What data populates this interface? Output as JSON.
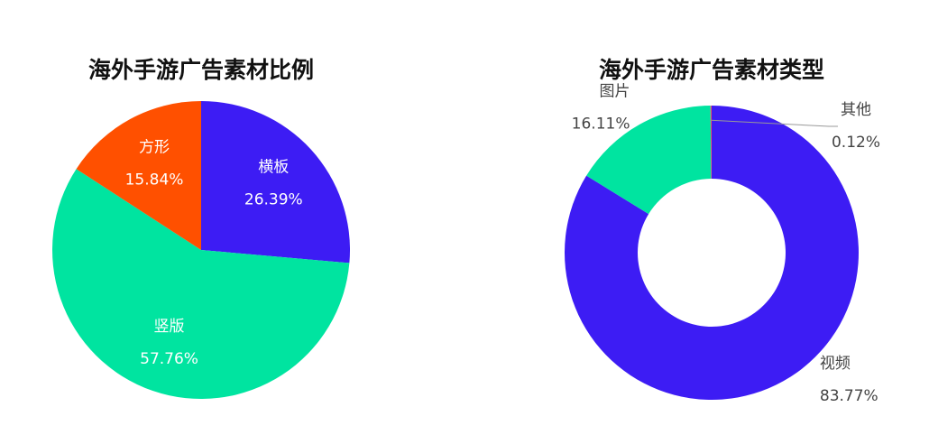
{
  "chart_data": [
    {
      "type": "pie",
      "title": "海外手游广告素材比例",
      "categories": [
        "横板",
        "竖版",
        "方形"
      ],
      "values": [
        26.39,
        57.76,
        15.84
      ],
      "value_labels": [
        "26.39%",
        "57.76%",
        "15.84%"
      ],
      "colors": [
        "#3d1cf4",
        "#00e4a0",
        "#ff5000"
      ]
    },
    {
      "type": "donut",
      "title": "海外手游广告素材类型",
      "categories": [
        "视频",
        "图片",
        "其他"
      ],
      "values": [
        83.77,
        16.11,
        0.12
      ],
      "value_labels": [
        "83.77%",
        "16.11%",
        "0.12%"
      ],
      "colors": [
        "#3d1cf4",
        "#00e4a0",
        "#e8556b"
      ]
    }
  ]
}
